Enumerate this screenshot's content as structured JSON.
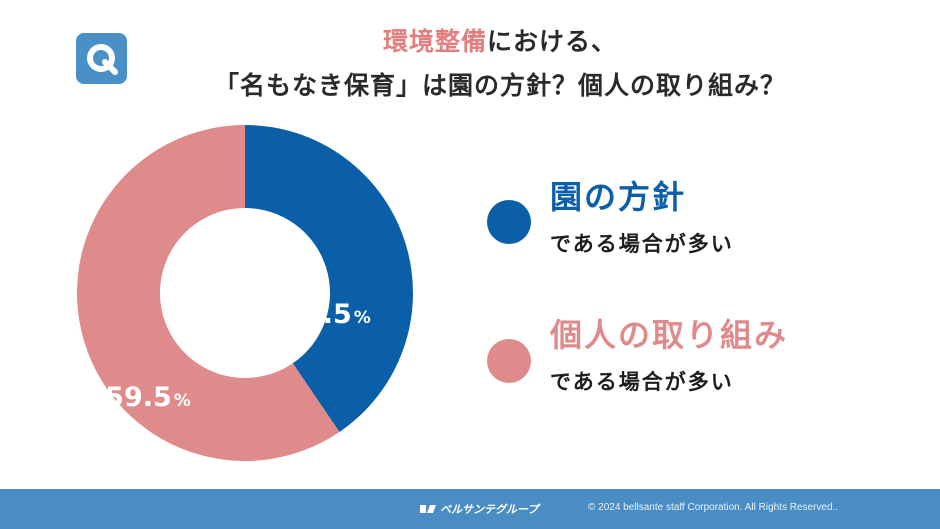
{
  "badge": {
    "label": "Q",
    "icon": "q-badge-icon"
  },
  "title": {
    "line1_accent": "環境整備",
    "line1_rest": "における、",
    "line2": "「名もなき保育」は園の方針？個人の取り組み？"
  },
  "chart_data": {
    "type": "pie",
    "donut": true,
    "slices": [
      {
        "label": "園の方針",
        "value": 40.5,
        "display": "40.5",
        "unit": "%",
        "color": "#0b5ea8"
      },
      {
        "label": "個人の取り組み",
        "value": 59.5,
        "display": "59.5",
        "unit": "%",
        "color": "#e08b8b"
      }
    ]
  },
  "legend": [
    {
      "name": "園の方針",
      "sub": "である場合が多い",
      "color": "#0b5ea8"
    },
    {
      "name": "個人の取り組み",
      "sub": "である場合が多い",
      "color": "#e08b8b"
    }
  ],
  "footer": {
    "logo": "ベルサンテグループ",
    "copyright": "© 2024 bellsante staff Corporation. All Rights Reserved.."
  }
}
